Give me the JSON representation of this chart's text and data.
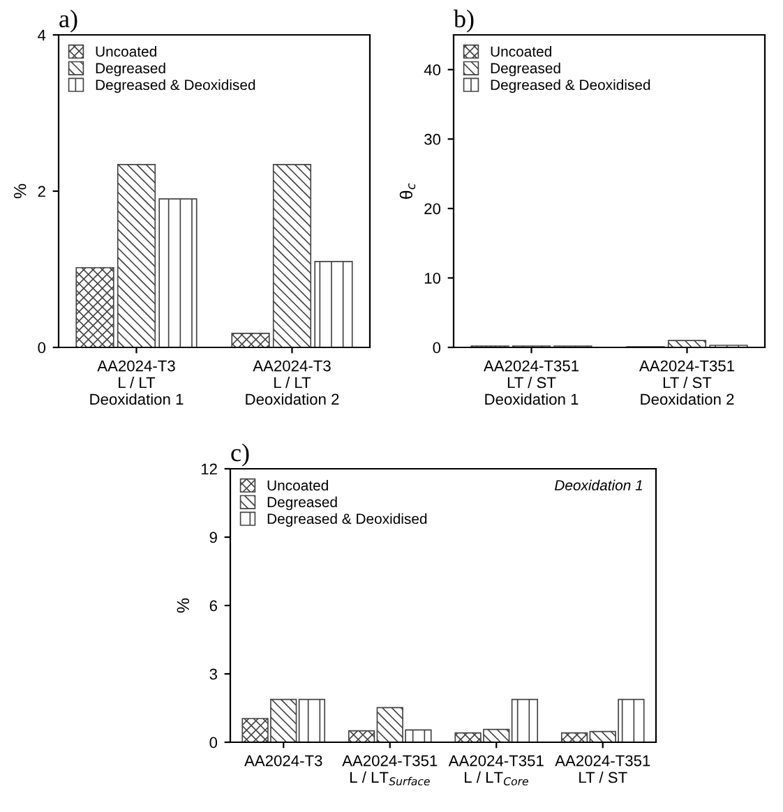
{
  "chart_data": [
    {
      "type": "bar",
      "title": "a)",
      "ylabel": "%",
      "categories": [
        "AA2024-T3\nL / LT\nDeoxidation 1",
        "AA2024-T3\nL / LT\nDeoxidation 2"
      ],
      "series": [
        {
          "name": "Uncoated",
          "color": "#444444",
          "values": [
            1.02,
            0.18
          ]
        },
        {
          "name": "Degreased",
          "color": "#444444",
          "values": [
            2.34,
            2.34
          ]
        },
        {
          "name": "Degreased & Deoxidised",
          "color": "#444444",
          "values": [
            1.9,
            1.1
          ]
        }
      ],
      "ylim": [
        0,
        4
      ],
      "yticks": [
        0,
        2,
        4
      ],
      "legend": "top left",
      "grid": false
    },
    {
      "type": "bar",
      "title": "b)",
      "ylabel": "θ$_{c}$",
      "categories": [
        "AA2024-T351\nLT / ST\nDeoxidation 1",
        "AA2024-T351\nLT / ST\nDeoxidation 2"
      ],
      "series": [
        {
          "name": "Uncoated",
          "color": "#444444",
          "values": [
            0.2,
            0.1
          ]
        },
        {
          "name": "Degreased",
          "color": "#444444",
          "values": [
            0.2,
            1.0
          ]
        },
        {
          "name": "Degreased & Deoxidised",
          "color": "#444444",
          "values": [
            0.2,
            0.3
          ]
        }
      ],
      "ylim": [
        0,
        45
      ],
      "yticks": [
        0,
        10,
        20,
        30,
        40
      ],
      "legend": "top left",
      "grid": false
    },
    {
      "type": "bar",
      "title": "c)",
      "ylabel": "%",
      "annotations": [
        "Deoxidation 1"
      ],
      "categories": [
        "AA2024-T3",
        "AA2024-T351\nL / LT$_{Surface}$",
        "AA2024-T351\nL / LT$_{Core}$",
        "AA2024-T351\nLT / ST"
      ],
      "series": [
        {
          "name": "Uncoated",
          "color": "#444444",
          "values": [
            1.04,
            0.5,
            0.41,
            0.41
          ]
        },
        {
          "name": "Degreased",
          "color": "#444444",
          "values": [
            1.88,
            1.52,
            0.56,
            0.47
          ]
        },
        {
          "name": "Degreased & Deoxidised",
          "color": "#444444",
          "values": [
            1.88,
            0.54,
            1.88,
            1.88
          ]
        }
      ],
      "ylim": [
        0,
        12
      ],
      "yticks": [
        0,
        3,
        6,
        9,
        12
      ],
      "legend": "top left",
      "grid": false
    }
  ]
}
